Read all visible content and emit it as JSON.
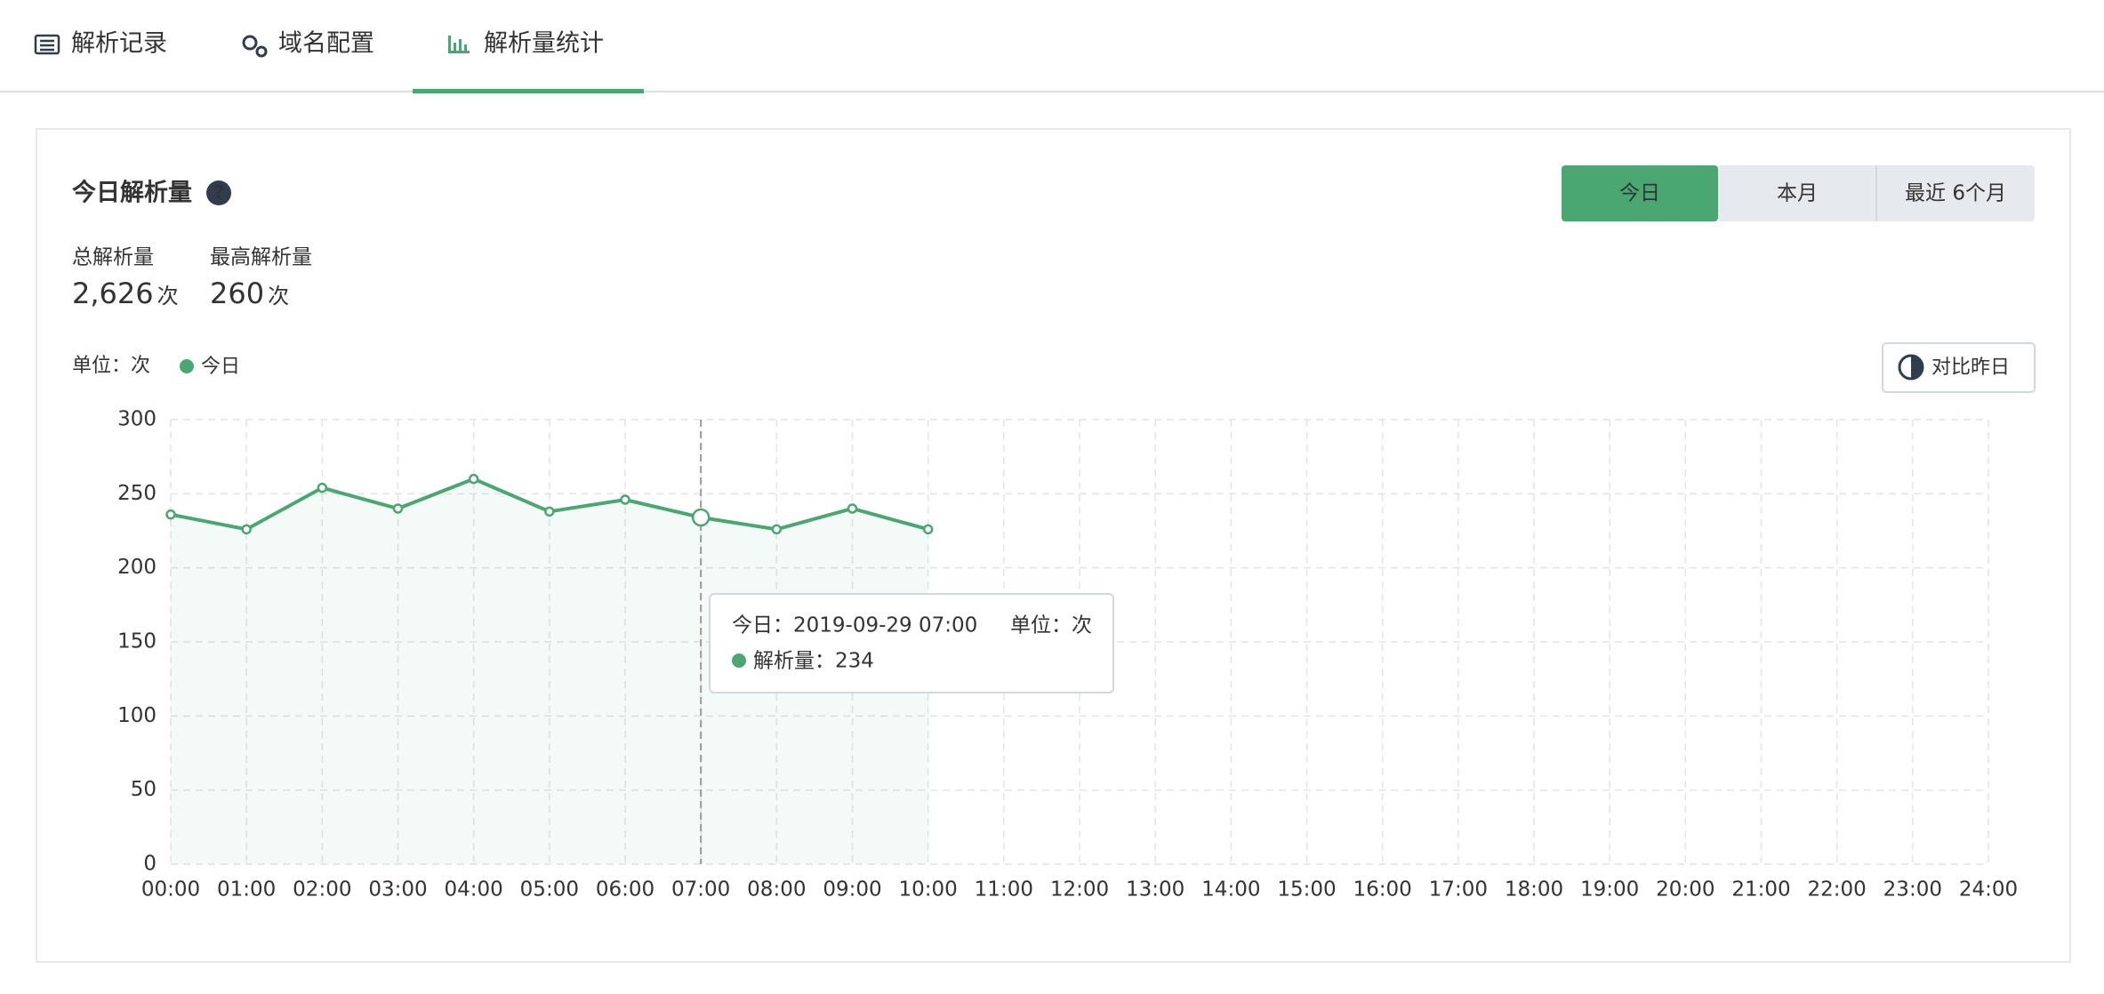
{
  "tabs": [
    "解析记录",
    "域名配置",
    "解析量统计"
  ],
  "panel": {
    "title": "今日解析量",
    "stats": [
      {
        "label": "总解析量",
        "value": "2,626",
        "unit": "次"
      },
      {
        "label": "最高解析量",
        "value": "260",
        "unit": "次"
      }
    ],
    "buttons": [
      "今日",
      "本月",
      "最近 6个月"
    ],
    "unit_label": "单位：次",
    "compare_button": "对比昨日"
  },
  "chart_data": {
    "type": "line",
    "categories": [
      "00:00",
      "01:00",
      "02:00",
      "03:00",
      "04:00",
      "05:00",
      "06:00",
      "07:00",
      "08:00",
      "09:00",
      "10:00",
      "11:00",
      "12:00",
      "13:00",
      "14:00",
      "15:00",
      "16:00",
      "17:00",
      "18:00",
      "19:00",
      "20:00",
      "21:00",
      "22:00",
      "23:00",
      "24:00"
    ],
    "series": [
      {
        "name": "今日",
        "color": "#4aa771",
        "values": [
          236,
          226,
          254,
          240,
          260,
          238,
          246,
          234,
          226,
          240,
          226,
          null,
          null,
          null,
          null,
          null,
          null,
          null,
          null,
          null,
          null,
          null,
          null,
          null,
          null
        ]
      }
    ],
    "ylim": [
      0,
      300
    ],
    "yticks": [
      0,
      50,
      100,
      150,
      200,
      250,
      300
    ],
    "grid": true,
    "tooltip": {
      "title": "今日：2019-09-29 07:00",
      "unit": "单位：次",
      "label": "解析量：",
      "index": 7
    }
  }
}
